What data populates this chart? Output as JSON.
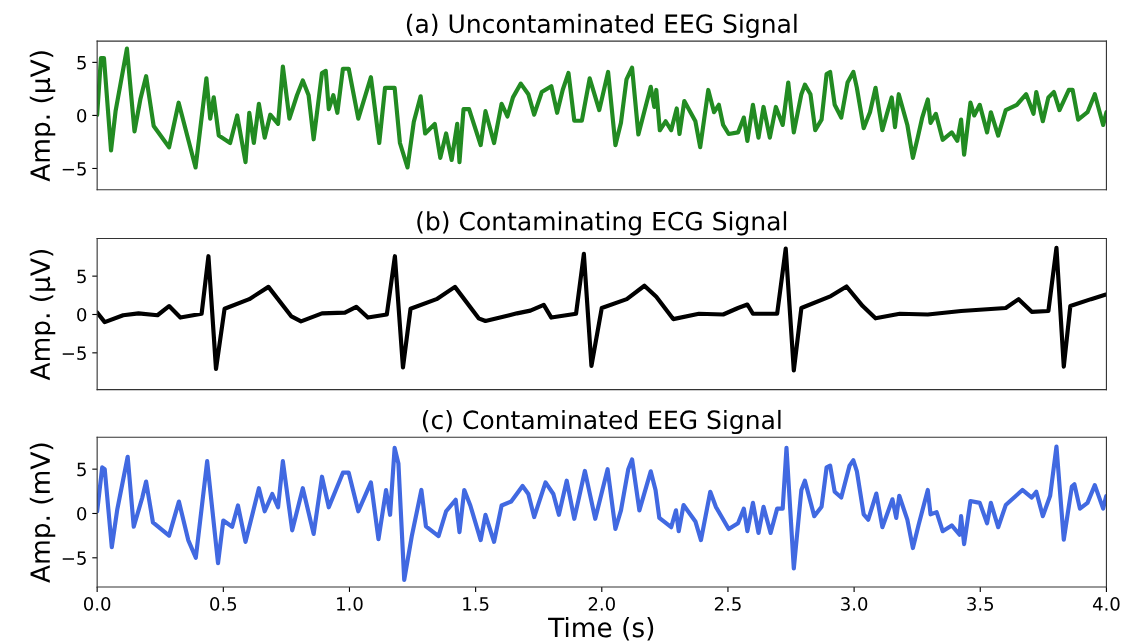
{
  "chart_data": [
    {
      "type": "line",
      "title": "(a) Uncontaminated EEG Signal",
      "ylabel": "Amp. (μV)",
      "xlim": [
        0,
        4
      ],
      "ylim": [
        -7,
        7
      ],
      "yticks": [
        -5,
        0,
        5
      ],
      "tick_labels": "y",
      "series": [
        {
          "color": "#228b22",
          "x": [
            0,
            0.015,
            0.027,
            0.055,
            0.073,
            0.118,
            0.148,
            0.171,
            0.194,
            0.224,
            0.285,
            0.323,
            0.39,
            0.433,
            0.448,
            0.462,
            0.482,
            0.527,
            0.555,
            0.588,
            0.603,
            0.621,
            0.641,
            0.664,
            0.686,
            0.717,
            0.736,
            0.762,
            0.792,
            0.815,
            0.838,
            0.858,
            0.891,
            0.906,
            0.918,
            0.936,
            0.952,
            0.974,
            0.997,
            1.035,
            1.085,
            1.118,
            1.141,
            1.179,
            1.2,
            1.23,
            1.255,
            1.282,
            1.3,
            1.338,
            1.36,
            1.383,
            1.405,
            1.427,
            1.436,
            1.452,
            1.474,
            1.52,
            1.539,
            1.573,
            1.603,
            1.626,
            1.648,
            1.679,
            1.709,
            1.732,
            1.762,
            1.8,
            1.823,
            1.845,
            1.868,
            1.891,
            1.921,
            1.952,
            1.99,
            2.025,
            2.054,
            2.076,
            2.098,
            2.12,
            2.145,
            2.194,
            2.208,
            2.216,
            2.23,
            2.253,
            2.275,
            2.297,
            2.308,
            2.327,
            2.371,
            2.39,
            2.422,
            2.445,
            2.464,
            2.481,
            2.503,
            2.54,
            2.563,
            2.577,
            2.599,
            2.621,
            2.641,
            2.666,
            2.69,
            2.717,
            2.739,
            2.761,
            2.791,
            2.805,
            2.827,
            2.846,
            2.871,
            2.891,
            2.905,
            2.923,
            2.949,
            2.974,
            2.997,
            3.011,
            3.038,
            3.063,
            3.085,
            3.112,
            3.13,
            3.149,
            3.162,
            3.177,
            3.211,
            3.233,
            3.252,
            3.27,
            3.292,
            3.303,
            3.324,
            3.351,
            3.387,
            3.409,
            3.424,
            3.436,
            3.461,
            3.476,
            3.498,
            3.527,
            3.542,
            3.571,
            3.601,
            3.645,
            3.682,
            3.711,
            3.722,
            3.748,
            3.77,
            3.792,
            3.814,
            3.851,
            3.866,
            3.888,
            3.925,
            3.954,
            3.987,
            4.0
          ],
          "values": [
            0.05,
            5.4,
            5.4,
            -3.3,
            0.4,
            6.3,
            -1.5,
            1.5,
            3.7,
            -1,
            -3,
            1.2,
            -4.9,
            3.5,
            -0.3,
            1.7,
            -1.9,
            -2.6,
            0,
            -4.4,
            0.25,
            -2.6,
            1.1,
            -2.1,
            0.07,
            -0.8,
            4.6,
            -0.3,
            1.9,
            3.3,
            1.9,
            -2.25,
            4,
            4.2,
            0.6,
            1.9,
            0.25,
            4.4,
            4.4,
            -0.3,
            3.6,
            -2.6,
            2.6,
            2.6,
            -2.6,
            -4.9,
            -0.6,
            1.8,
            -1.7,
            -0.8,
            -4,
            -1.7,
            -4.2,
            -0.8,
            -4.4,
            0.6,
            0.6,
            -2.8,
            0.4,
            -2.6,
            1.1,
            -0.1,
            1.7,
            3,
            2,
            0.07,
            2.2,
            2.75,
            0.25,
            2.4,
            4,
            -0.5,
            -0.5,
            3.5,
            0.5,
            4.1,
            -2.8,
            -0.7,
            3.4,
            4.5,
            -1.8,
            2.7,
            0.8,
            2.4,
            -1.4,
            -0.55,
            -1.4,
            0.66,
            -1.75,
            1.35,
            -0.55,
            -3,
            2.4,
            0.3,
            1,
            -0.9,
            -1.75,
            -1.6,
            -0.2,
            -2.4,
            1,
            -2.1,
            0.8,
            -2.1,
            0.8,
            -0.9,
            3.1,
            -1.6,
            2,
            2.9,
            2,
            -1.4,
            -0.4,
            3.9,
            4.1,
            1,
            -0.2,
            3.1,
            4.1,
            2.6,
            -1.2,
            0.3,
            2.6,
            -1.4,
            0.15,
            1.7,
            -1.1,
            2,
            -0.9,
            -4,
            -2.1,
            -0.2,
            1.5,
            -0.7,
            0.15,
            -2.3,
            -1.6,
            -2.4,
            -0.4,
            -3.7,
            1.2,
            0,
            1,
            -1.6,
            0.3,
            -1.9,
            0.5,
            1,
            2,
            0.15,
            2.2,
            -0.55,
            1.7,
            2.2,
            0.5,
            2.4,
            2.4,
            -0.4,
            0.3,
            2,
            -0.9,
            0.3
          ]
        }
      ]
    },
    {
      "type": "line",
      "title": "(b) Contaminating ECG Signal",
      "ylabel": "Amp. (μV)",
      "xlim": [
        0,
        4
      ],
      "ylim": [
        -9.8,
        9.9
      ],
      "yticks": [
        -5,
        0,
        5
      ],
      "tick_labels": "y",
      "series": [
        {
          "color": "#000000",
          "x": [
            0,
            0.03,
            0.103,
            0.164,
            0.239,
            0.285,
            0.33,
            0.414,
            0.441,
            0.471,
            0.505,
            0.603,
            0.679,
            0.77,
            0.808,
            0.891,
            0.982,
            1.027,
            1.073,
            1.148,
            1.18,
            1.212,
            1.242,
            1.345,
            1.418,
            1.512,
            1.539,
            1.664,
            1.717,
            1.77,
            1.8,
            1.898,
            1.929,
            1.959,
            2.0,
            2.099,
            2.169,
            2.216,
            2.283,
            2.385,
            2.481,
            2.54,
            2.577,
            2.599,
            2.695,
            2.729,
            2.761,
            2.791,
            2.908,
            2.97,
            3.034,
            3.085,
            3.181,
            3.292,
            3.424,
            3.601,
            3.652,
            3.704,
            3.77,
            3.802,
            3.831,
            3.857,
            3.939,
            3.998
          ],
          "values": [
            0.25,
            -1,
            -0.1,
            0.15,
            -0.1,
            1.1,
            -0.4,
            0.1,
            7.6,
            -7.1,
            0.75,
            2,
            3.6,
            -0.25,
            -0.9,
            0.15,
            0.25,
            1,
            -0.4,
            0,
            7.6,
            -6.9,
            0.75,
            2,
            3.6,
            -0.5,
            -0.85,
            0.15,
            0.5,
            1.25,
            -0.4,
            0.1,
            7.9,
            -6.7,
            0.85,
            2,
            3.75,
            2.3,
            -0.6,
            0.1,
            0,
            0.85,
            1.3,
            0.1,
            0.1,
            8.6,
            -7.3,
            0.85,
            2.4,
            3.65,
            1.1,
            -0.5,
            0.1,
            0,
            0.45,
            0.85,
            2,
            0.35,
            0.45,
            8.7,
            -6.8,
            1.1,
            2,
            2.6
          ]
        }
      ]
    },
    {
      "type": "line",
      "title": "(c) Contaminated EEG Signal",
      "ylabel": "Amp. (mV)",
      "xlabel": "Time (s)",
      "xlim": [
        0,
        4
      ],
      "xticks": [
        {
          "value": 0,
          "label": "0.0"
        },
        {
          "value": 0.5,
          "label": "0.5"
        },
        {
          "value": 1,
          "label": "1.0"
        },
        {
          "value": 1.5,
          "label": "1.5"
        },
        {
          "value": 2,
          "label": "2.0"
        },
        {
          "value": 2.5,
          "label": "2.5"
        },
        {
          "value": 3,
          "label": "3.0"
        },
        {
          "value": 3.5,
          "label": "3.5"
        },
        {
          "value": 4,
          "label": "4.0"
        }
      ],
      "ylim": [
        -8.3,
        8.6
      ],
      "yticks": [
        -5,
        0,
        5
      ],
      "series": [
        {
          "color": "#4169e1",
          "x": [
            0,
            0.02,
            0.03,
            0.058,
            0.08,
            0.121,
            0.145,
            0.179,
            0.194,
            0.221,
            0.285,
            0.324,
            0.361,
            0.391,
            0.436,
            0.479,
            0.5,
            0.535,
            0.558,
            0.588,
            0.641,
            0.664,
            0.694,
            0.717,
            0.736,
            0.773,
            0.815,
            0.858,
            0.891,
            0.918,
            0.974,
            0.997,
            1.035,
            1.085,
            1.115,
            1.145,
            1.161,
            1.179,
            1.194,
            1.217,
            1.247,
            1.285,
            1.303,
            1.353,
            1.383,
            1.421,
            1.436,
            1.455,
            1.479,
            1.52,
            1.539,
            1.573,
            1.603,
            1.641,
            1.686,
            1.709,
            1.732,
            1.777,
            1.808,
            1.83,
            1.861,
            1.891,
            1.933,
            1.974,
            2.023,
            2.054,
            2.076,
            2.105,
            2.12,
            2.149,
            2.194,
            2.213,
            2.228,
            2.275,
            2.294,
            2.305,
            2.324,
            2.371,
            2.393,
            2.43,
            2.452,
            2.503,
            2.54,
            2.563,
            2.577,
            2.599,
            2.621,
            2.641,
            2.669,
            2.695,
            2.717,
            2.732,
            2.761,
            2.791,
            2.805,
            2.842,
            2.871,
            2.891,
            2.905,
            2.923,
            2.949,
            2.982,
            2.997,
            3.011,
            3.038,
            3.056,
            3.088,
            3.112,
            3.152,
            3.167,
            3.179,
            3.211,
            3.233,
            3.255,
            3.292,
            3.303,
            3.327,
            3.351,
            3.387,
            3.418,
            3.424,
            3.436,
            3.461,
            3.498,
            3.527,
            3.542,
            3.571,
            3.601,
            3.667,
            3.704,
            3.722,
            3.748,
            3.777,
            3.802,
            3.831,
            3.863,
            3.873,
            3.895,
            3.925,
            3.954,
            3.987,
            3.999
          ],
          "values": [
            0.25,
            5.2,
            5,
            -3.8,
            0.5,
            6.4,
            -1.5,
            1.8,
            3.6,
            -1,
            -2.5,
            1.35,
            -3,
            -5,
            5.9,
            -5.6,
            -0.8,
            -1.5,
            0.9,
            -3.2,
            2.85,
            0.25,
            2.2,
            0.7,
            5.9,
            -1.9,
            2.85,
            -2.3,
            4.15,
            0.7,
            4.6,
            4.6,
            0.25,
            3.5,
            -2.9,
            2.65,
            -0.15,
            7.4,
            5.65,
            -7.5,
            -2.55,
            2.65,
            -1.45,
            -2.55,
            0.25,
            1.55,
            -2.1,
            2.65,
            0.9,
            -3,
            -0.15,
            -3.2,
            0.9,
            1.35,
            3.1,
            2.2,
            -0.4,
            3.5,
            2.2,
            -0.15,
            3.7,
            -0.6,
            4.8,
            -0.6,
            5,
            -1.75,
            0.35,
            5,
            6.1,
            0.35,
            4.75,
            2.65,
            -0.5,
            -1.55,
            0.35,
            -2,
            0.95,
            -0.9,
            -3,
            2.45,
            0.75,
            -1.75,
            -1.1,
            0.55,
            -2,
            1.2,
            -2.2,
            0.75,
            -2.2,
            0.55,
            0.55,
            7.4,
            -6.2,
            2.65,
            3.7,
            -0.3,
            0.75,
            5.2,
            5.4,
            2.45,
            1.8,
            5.4,
            6,
            4.75,
            -0.1,
            -0.7,
            2.25,
            -1.55,
            1.6,
            -0.5,
            2,
            -0.7,
            -3.9,
            -1.35,
            2.65,
            -0.1,
            0.15,
            -2,
            -1.35,
            -2.4,
            -0.3,
            -3.45,
            1.4,
            1.2,
            -1.1,
            1.2,
            -1.55,
            0.95,
            2.65,
            1.8,
            2.45,
            -0.3,
            2,
            7.55,
            -2.95,
            3.05,
            3.3,
            0.55,
            1.2,
            3.2,
            0.55,
            1.95
          ]
        }
      ]
    }
  ]
}
